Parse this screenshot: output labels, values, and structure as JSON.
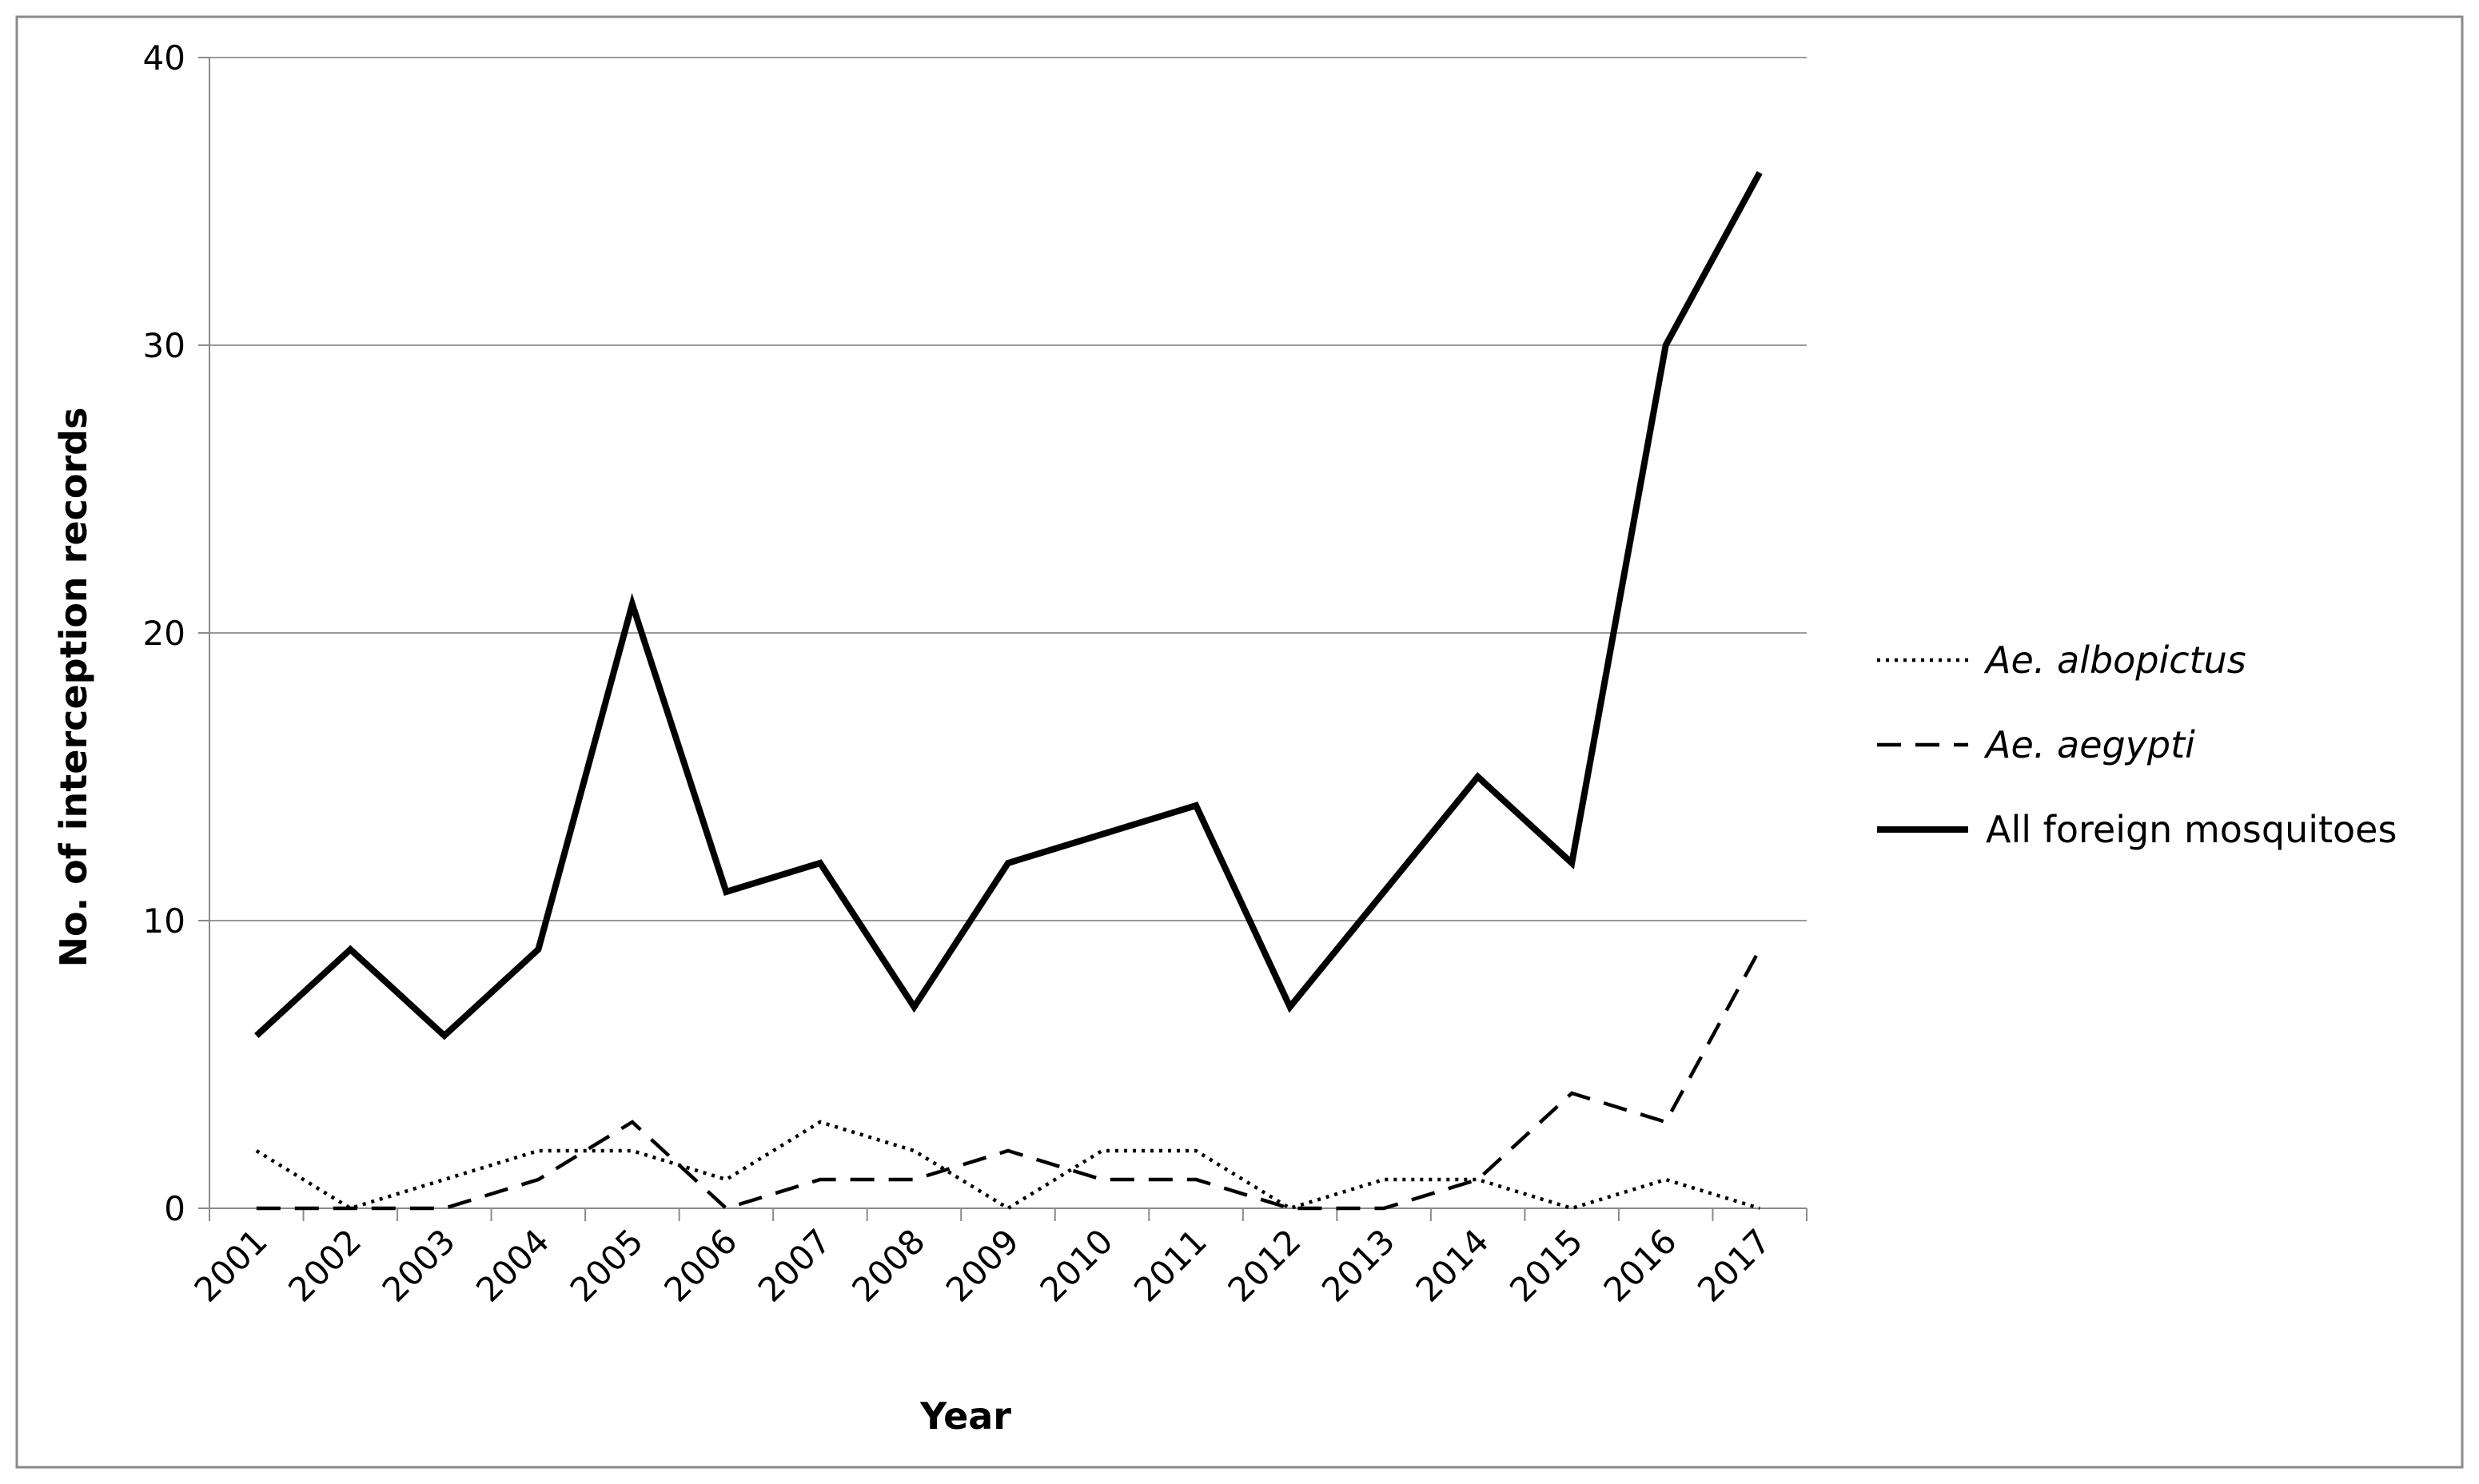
{
  "chart_data": {
    "type": "line",
    "title": "",
    "xlabel": "Year",
    "ylabel": "No. of interception records",
    "categories": [
      "2001",
      "2002",
      "2003",
      "2004",
      "2005",
      "2006",
      "2007",
      "2008",
      "2009",
      "2010",
      "2011",
      "2012",
      "2013",
      "2014",
      "2015",
      "2016",
      "2017"
    ],
    "ylim": [
      0,
      40
    ],
    "yticks": [
      0,
      10,
      20,
      30,
      40
    ],
    "grid": "horizontal",
    "legend_position": "right",
    "series": [
      {
        "name": "Ae. albopictus",
        "style": "dotted",
        "italic": true,
        "values": [
          2,
          0,
          1,
          2,
          2,
          1,
          3,
          2,
          0,
          2,
          2,
          0,
          1,
          1,
          0,
          1,
          0
        ]
      },
      {
        "name": "Ae. aegypti",
        "style": "dashed",
        "italic": true,
        "values": [
          0,
          0,
          0,
          1,
          3,
          0,
          1,
          1,
          2,
          1,
          1,
          0,
          0,
          1,
          4,
          3,
          9
        ]
      },
      {
        "name": "All foreign mosquitoes",
        "style": "solid",
        "italic": false,
        "values": [
          6,
          9,
          6,
          9,
          21,
          11,
          12,
          7,
          12,
          13,
          14,
          7,
          11,
          15,
          12,
          30,
          36
        ]
      }
    ],
    "colors": {
      "line": "#000000",
      "grid": "#9a9a9a",
      "frame": "#8a8a8a"
    }
  }
}
